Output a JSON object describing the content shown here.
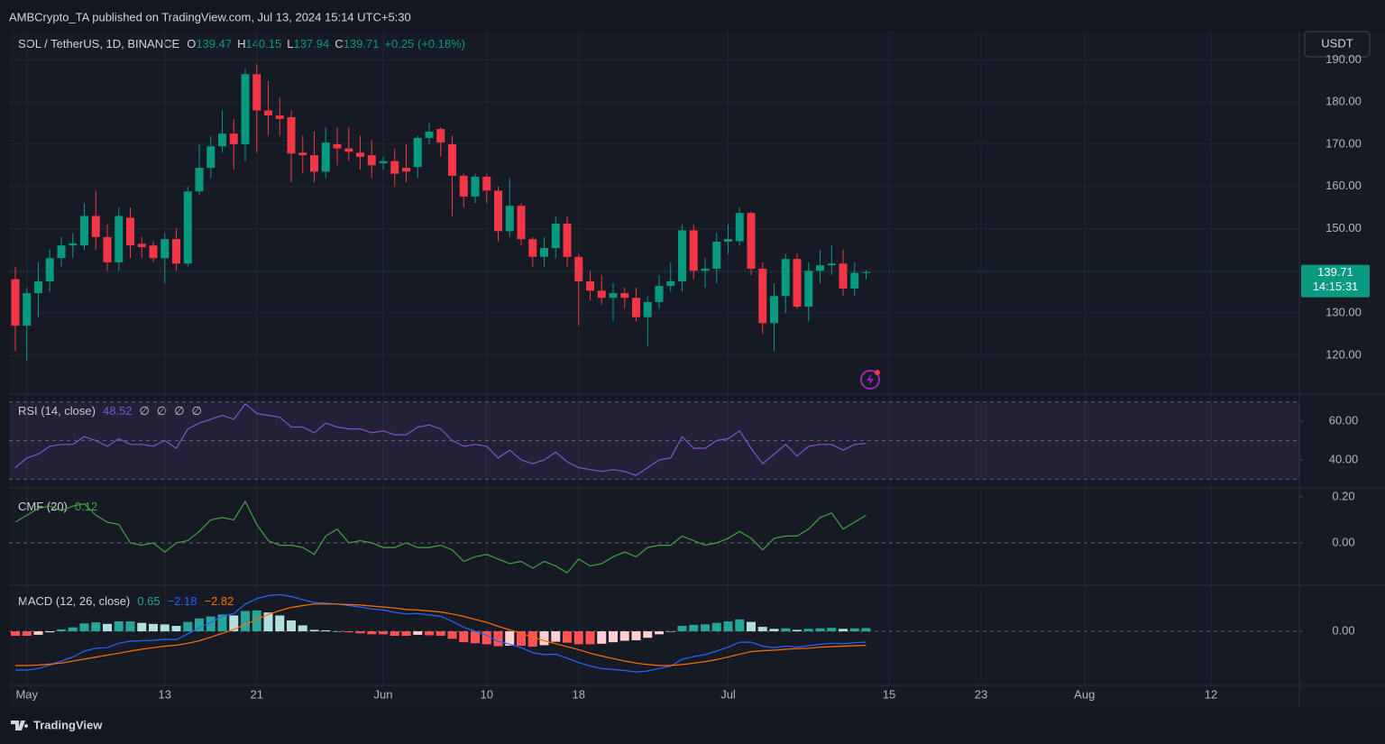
{
  "header": {
    "publisher": "AMBCrypto_TA published on TradingView.com, Jul 13, 2024 15:14 UTC+5:30"
  },
  "currency_button": "USDT",
  "footer_logo": "TradingView",
  "countdown": "14:15:31",
  "chart_data": [
    {
      "type": "candlestick",
      "title": "SOL / TetherUS, 1D, BINANCE",
      "ohlc_letters": [
        "O",
        "H",
        "L",
        "C"
      ],
      "change_label": "+0.25 (+0.18%)",
      "up_color": "#089981",
      "down_color": "#f23645",
      "x": [
        "2024-04-30",
        "2024-05-01",
        "2024-05-02",
        "2024-05-03",
        "2024-05-04",
        "2024-05-05",
        "2024-05-06",
        "2024-05-07",
        "2024-05-08",
        "2024-05-09",
        "2024-05-10",
        "2024-05-11",
        "2024-05-12",
        "2024-05-13",
        "2024-05-14",
        "2024-05-15",
        "2024-05-16",
        "2024-05-17",
        "2024-05-18",
        "2024-05-19",
        "2024-05-20",
        "2024-05-21",
        "2024-05-22",
        "2024-05-23",
        "2024-05-24",
        "2024-05-25",
        "2024-05-26",
        "2024-05-27",
        "2024-05-28",
        "2024-05-29",
        "2024-05-30",
        "2024-05-31",
        "2024-06-01",
        "2024-06-02",
        "2024-06-03",
        "2024-06-04",
        "2024-06-05",
        "2024-06-06",
        "2024-06-07",
        "2024-06-08",
        "2024-06-09",
        "2024-06-10",
        "2024-06-11",
        "2024-06-12",
        "2024-06-13",
        "2024-06-14",
        "2024-06-15",
        "2024-06-16",
        "2024-06-17",
        "2024-06-18",
        "2024-06-19",
        "2024-06-20",
        "2024-06-21",
        "2024-06-22",
        "2024-06-23",
        "2024-06-24",
        "2024-06-25",
        "2024-06-26",
        "2024-06-27",
        "2024-06-28",
        "2024-06-29",
        "2024-06-30",
        "2024-07-01",
        "2024-07-02",
        "2024-07-03",
        "2024-07-04",
        "2024-07-05",
        "2024-07-06",
        "2024-07-07",
        "2024-07-08",
        "2024-07-09",
        "2024-07-10",
        "2024-07-11",
        "2024-07-12",
        "2024-07-13"
      ],
      "open": [
        138,
        127,
        134.7,
        137.5,
        143,
        146,
        146,
        153,
        148,
        142,
        152.6,
        146.4,
        146,
        143,
        147.5,
        141.7,
        158.8,
        164.4,
        169.5,
        172.5,
        170,
        186.6,
        178,
        176.8,
        176.4,
        168,
        167.4,
        163.5,
        170,
        169,
        168,
        167.4,
        165.5,
        166,
        164.4,
        164.6,
        171.5,
        173.6,
        170,
        162.5,
        157.6,
        162.3,
        159,
        149.4,
        155.4,
        147.5,
        143.3,
        145.4,
        151.2,
        143.3,
        137.5,
        135.3,
        133.6,
        134.7,
        133.6,
        129,
        132.6,
        136.4,
        137.5,
        149.6,
        140,
        140.5,
        146.9,
        147,
        153.7,
        140.5,
        127.6,
        134,
        142.8,
        131.5,
        140,
        141.3,
        141.7,
        135.8,
        139.47
      ],
      "high": [
        141,
        136,
        142,
        145,
        148,
        149,
        156,
        159,
        151,
        155,
        155,
        148,
        147,
        149,
        150,
        160,
        170,
        172,
        178,
        176,
        188,
        189,
        185,
        181,
        178,
        172,
        173,
        174,
        174,
        174,
        172,
        171,
        167,
        169,
        170,
        172,
        175,
        174,
        172,
        163,
        163,
        163,
        160,
        162,
        156,
        148,
        148,
        153,
        153,
        144,
        140,
        139,
        137,
        136,
        136,
        134,
        139,
        142,
        151,
        151,
        143,
        149,
        151,
        155,
        154,
        142,
        137,
        144,
        144,
        142,
        145,
        146,
        145,
        142,
        140.15
      ],
      "low": [
        121,
        118.7,
        129,
        135,
        141,
        143,
        145,
        145,
        140,
        140,
        143,
        143,
        142,
        137,
        140,
        141,
        158,
        162,
        168,
        164,
        166,
        168,
        172,
        172,
        161,
        163,
        161,
        162,
        165,
        166,
        164,
        162,
        164,
        160,
        161,
        162,
        170,
        167,
        153,
        155,
        156,
        156,
        147,
        148,
        146,
        141,
        141,
        143,
        141,
        127,
        133,
        132,
        128,
        131,
        128,
        122,
        131,
        135,
        135,
        138,
        136,
        137,
        144,
        146,
        139,
        125,
        121,
        130,
        131,
        128,
        137,
        139,
        134,
        134,
        137.94
      ],
      "close": [
        127,
        134.7,
        137.5,
        143,
        146,
        146.5,
        153,
        148,
        142,
        153,
        146,
        145.6,
        143,
        147.5,
        141.7,
        158.8,
        164.4,
        169.5,
        172.5,
        170,
        186.6,
        178,
        176.8,
        176,
        167.8,
        167.4,
        163.5,
        170.4,
        169,
        168.2,
        167,
        165,
        166,
        163,
        163.5,
        171.5,
        173,
        170.4,
        162.5,
        157.6,
        162.3,
        159,
        149.4,
        155.4,
        147.5,
        143.3,
        145.4,
        151.2,
        143.3,
        137.5,
        135.3,
        133.6,
        134.7,
        133.6,
        129,
        132.6,
        136.4,
        137.5,
        149.6,
        140,
        140.5,
        146.9,
        147.5,
        153.7,
        140.5,
        127.6,
        134,
        142.8,
        131.5,
        140,
        141.3,
        141.7,
        135.8,
        139.5,
        139.71
      ],
      "ylim": [
        111.2,
        196.7
      ],
      "yticks": [
        {
          "value": 120,
          "label": "120.00"
        },
        {
          "value": 130,
          "label": "130.00"
        },
        {
          "value": 140,
          "label": "140.00"
        },
        {
          "value": 150,
          "label": "150.00"
        },
        {
          "value": 160,
          "label": "160.00"
        },
        {
          "value": 170,
          "label": "170.00"
        },
        {
          "value": 180,
          "label": "180.00"
        },
        {
          "value": 190,
          "label": "190.00"
        }
      ],
      "hidden_tick_label_index": 2,
      "xlim": [
        "2024-04-30",
        "2024-08-20"
      ],
      "xticks": [
        {
          "value": "2024-05-01",
          "label": "May"
        },
        {
          "value": "2024-05-13",
          "label": "13"
        },
        {
          "value": "2024-05-21",
          "label": "21"
        },
        {
          "value": "2024-06-01",
          "label": "Jun"
        },
        {
          "value": "2024-06-10",
          "label": "10"
        },
        {
          "value": "2024-06-18",
          "label": "18"
        },
        {
          "value": "2024-07-01",
          "label": "Jul"
        },
        {
          "value": "2024-07-15",
          "label": "15"
        },
        {
          "value": "2024-07-23",
          "label": "23"
        },
        {
          "value": "2024-08-01",
          "label": "Aug"
        },
        {
          "value": "2024-08-12",
          "label": "12"
        }
      ],
      "grid": true
    },
    {
      "type": "line",
      "title": "RSI (14, close)",
      "color": "#7e57c2",
      "symbols": [
        "∅",
        "∅",
        "∅",
        "∅"
      ],
      "values": [
        36,
        41,
        43,
        47,
        48,
        48,
        52,
        50,
        47,
        51,
        48,
        48,
        47,
        50,
        46,
        56,
        59,
        61,
        63,
        61,
        69,
        64,
        63,
        62,
        57,
        57,
        54,
        59,
        57,
        56,
        56,
        54,
        55,
        53,
        53,
        57,
        58,
        56,
        50,
        47,
        48,
        47,
        41,
        45,
        40,
        38,
        40,
        44,
        39,
        36,
        35,
        34,
        35,
        34,
        32,
        36,
        40,
        41,
        52,
        46,
        46,
        50,
        51,
        55,
        46,
        38,
        43,
        48,
        42,
        47,
        48,
        48,
        45,
        48,
        48.52
      ],
      "ylim": [
        26,
        72.6
      ],
      "yticks": [
        {
          "value": 40,
          "label": "40.00"
        },
        {
          "value": 60,
          "label": "60.00"
        }
      ],
      "bands": [
        70,
        50,
        30
      ],
      "band_fill": "rgba(126,87,194,0.12)"
    },
    {
      "type": "line",
      "title": "CMF (20)",
      "color": "#43a047",
      "values": [
        0.09,
        0.12,
        0.15,
        0.16,
        0.14,
        0.16,
        0.17,
        0.12,
        0.09,
        0.08,
        0.0,
        -0.01,
        0.0,
        -0.04,
        0.0,
        0.01,
        0.05,
        0.1,
        0.11,
        0.1,
        0.18,
        0.08,
        0.01,
        -0.01,
        -0.01,
        -0.02,
        -0.05,
        0.03,
        0.06,
        0.0,
        0.01,
        0.0,
        -0.02,
        -0.02,
        0.0,
        -0.02,
        -0.02,
        -0.01,
        -0.03,
        -0.08,
        -0.06,
        -0.05,
        -0.07,
        -0.09,
        -0.08,
        -0.11,
        -0.08,
        -0.1,
        -0.13,
        -0.07,
        -0.1,
        -0.09,
        -0.06,
        -0.04,
        -0.06,
        -0.02,
        -0.01,
        -0.01,
        0.03,
        0.01,
        -0.01,
        0.0,
        0.02,
        0.05,
        0.02,
        -0.03,
        0.02,
        0.03,
        0.03,
        0.06,
        0.11,
        0.13,
        0.06,
        0.09,
        0.12
      ],
      "ylim": [
        -0.18,
        0.235
      ],
      "yticks": [
        {
          "value": 0,
          "label": "0.00"
        },
        {
          "value": 0.2,
          "label": "0.20"
        }
      ],
      "bands": [
        0
      ]
    },
    {
      "type": "macd",
      "title": "MACD (12, 26, close)",
      "histogram_colors": [
        "#26a69a",
        "#b2dfdb",
        "#ff5252",
        "#ffcdd2"
      ],
      "series": [
        {
          "kind": "histogram",
          "color": "#26a69a",
          "values": [
            -0.9,
            -0.9,
            -0.7,
            -0.2,
            0.4,
            0.8,
            1.6,
            1.8,
            1.5,
            2.0,
            2.0,
            1.7,
            1.5,
            1.4,
            1.1,
            1.9,
            2.6,
            3.0,
            3.4,
            3.2,
            4.1,
            4.2,
            3.8,
            3.2,
            2.2,
            1.2,
            0.3,
            0.2,
            0.0,
            -0.2,
            -0.4,
            -0.6,
            -0.6,
            -0.9,
            -0.9,
            -0.7,
            -0.8,
            -0.9,
            -1.5,
            -2.2,
            -2.4,
            -2.6,
            -3.0,
            -2.9,
            -2.9,
            -3.1,
            -2.8,
            -2.1,
            -2.3,
            -2.6,
            -2.6,
            -2.5,
            -2.2,
            -1.9,
            -1.8,
            -1.3,
            -0.6,
            -0.1,
            1.1,
            1.3,
            1.4,
            1.7,
            2.0,
            2.4,
            1.9,
            0.9,
            0.5,
            0.6,
            0.3,
            0.5,
            0.6,
            0.7,
            0.5,
            0.6,
            0.65
          ]
        },
        {
          "kind": "line",
          "color": "#2962ff",
          "legend_label": "−2.18",
          "values": [
            -7.8,
            -7.8,
            -7.5,
            -6.8,
            -6.0,
            -5.2,
            -4.0,
            -3.4,
            -3.3,
            -2.4,
            -2.0,
            -1.9,
            -1.8,
            -1.6,
            -1.7,
            -0.5,
            0.7,
            1.8,
            3.0,
            3.6,
            5.5,
            6.6,
            7.2,
            7.4,
            7.0,
            6.4,
            5.8,
            5.7,
            5.5,
            5.2,
            4.9,
            4.5,
            4.3,
            3.8,
            3.5,
            3.6,
            3.3,
            3.0,
            2.0,
            0.8,
            0.0,
            -0.8,
            -2.0,
            -2.6,
            -3.3,
            -4.3,
            -4.7,
            -4.6,
            -5.4,
            -6.3,
            -7.0,
            -7.5,
            -7.7,
            -7.9,
            -8.2,
            -8.0,
            -7.5,
            -7.0,
            -5.6,
            -5.1,
            -4.7,
            -4.0,
            -3.2,
            -2.2,
            -2.2,
            -3.0,
            -3.3,
            -3.0,
            -3.2,
            -2.9,
            -2.6,
            -2.4,
            -2.5,
            -2.3,
            -2.18
          ]
        },
        {
          "kind": "line",
          "color": "#ff6d00",
          "legend_label": "−2.82",
          "values": [
            -6.9,
            -6.9,
            -6.8,
            -6.6,
            -6.4,
            -6.0,
            -5.6,
            -5.2,
            -4.8,
            -4.4,
            -4.0,
            -3.6,
            -3.3,
            -3.0,
            -2.8,
            -2.4,
            -1.9,
            -1.2,
            -0.4,
            0.4,
            1.4,
            2.4,
            3.4,
            4.2,
            4.8,
            5.2,
            5.5,
            5.5,
            5.5,
            5.4,
            5.3,
            5.1,
            4.9,
            4.7,
            4.4,
            4.3,
            4.1,
            3.9,
            3.5,
            3.0,
            2.4,
            1.8,
            1.0,
            0.3,
            -0.4,
            -1.2,
            -1.9,
            -2.5,
            -3.1,
            -3.7,
            -4.4,
            -5.0,
            -5.5,
            -6.0,
            -6.4,
            -6.7,
            -6.9,
            -6.9,
            -6.7,
            -6.4,
            -6.1,
            -5.7,
            -5.2,
            -4.6,
            -4.1,
            -3.9,
            -3.8,
            -3.6,
            -3.5,
            -3.4,
            -3.2,
            -3.1,
            -3.0,
            -2.9,
            -2.82
          ]
        }
      ],
      "ylim": [
        -10.9,
        9.1
      ],
      "yticks": [
        {
          "value": 0,
          "label": "0.00"
        }
      ],
      "bands": [
        0
      ]
    }
  ]
}
